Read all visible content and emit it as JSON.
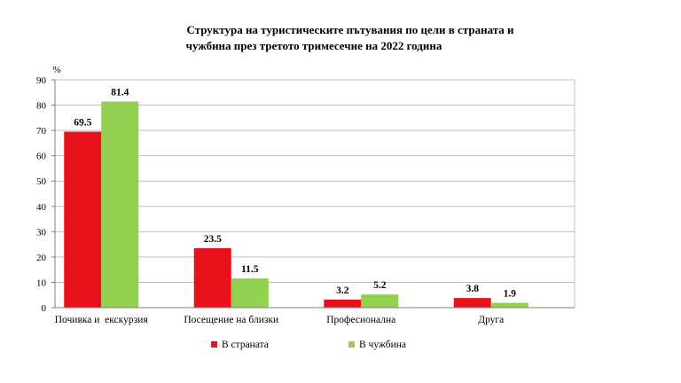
{
  "chart_data": {
    "type": "bar",
    "title": "Структура на туристическите пътувания по цели в страната и чужбина през третото тримесечие на 2022 година",
    "title_lines": [
      "Структура на туристическите пътувания по цели в страната и",
      "чужбина през третото тримесечие на 2022 година"
    ],
    "unit": "%",
    "categories": [
      "Почивка и  екскурзия",
      "Посещение на близки",
      "Професионална",
      "Друга"
    ],
    "series": [
      {
        "name": "В страната",
        "color": "#e8101a",
        "values": [
          69.5,
          23.5,
          3.2,
          3.8
        ],
        "labels": [
          "69.5",
          "23.5",
          "3.2",
          "3.8"
        ]
      },
      {
        "name": "В чужбина",
        "color": "#92d050",
        "values": [
          81.4,
          11.5,
          5.2,
          1.9
        ],
        "labels": [
          "81.4",
          "11.5",
          "5.2",
          "1.9"
        ]
      }
    ],
    "ylim": [
      0,
      90
    ],
    "yticks": [
      "0",
      "10",
      "20",
      "30",
      "40",
      "50",
      "60",
      "70",
      "80",
      "90"
    ],
    "grid": true,
    "legend": "bottom"
  }
}
